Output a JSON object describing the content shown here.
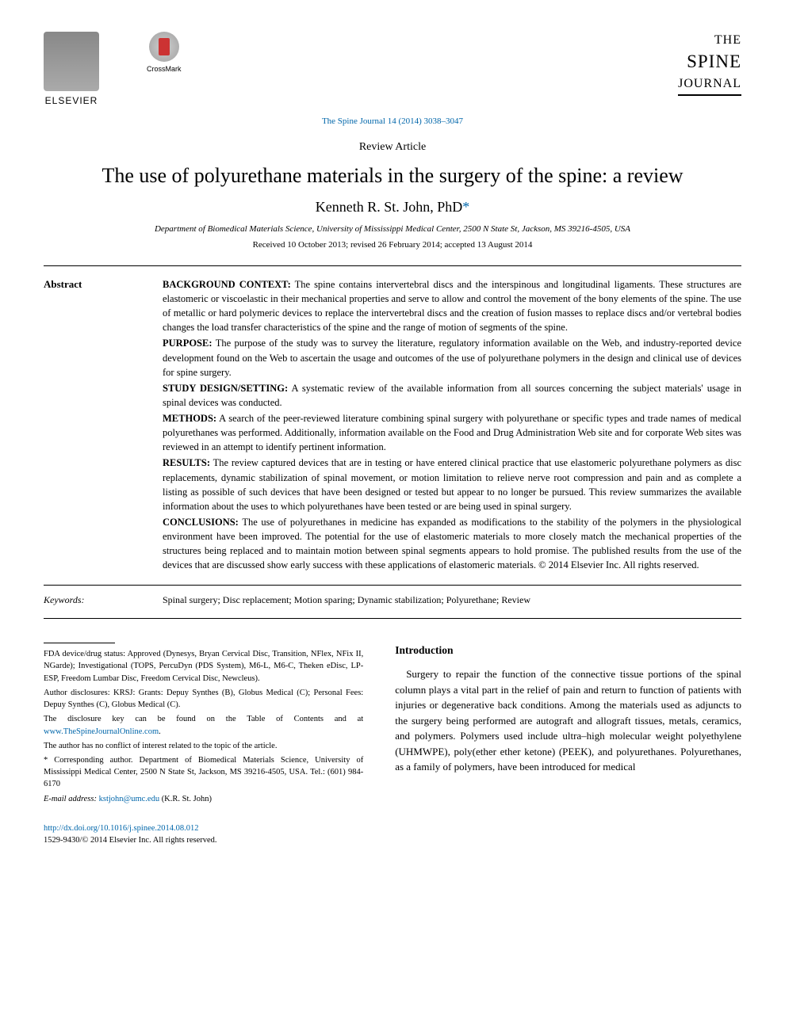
{
  "header": {
    "elsevier_label": "ELSEVIER",
    "crossmark_label": "CrossMark",
    "journal_the": "THE",
    "journal_spine": "SPINE",
    "journal_journal": "JOURNAL",
    "citation": "The Spine Journal 14 (2014) 3038–3047"
  },
  "article": {
    "type": "Review Article",
    "title": "The use of polyurethane materials in the surgery of the spine: a review",
    "author": "Kenneth R. St. John, PhD",
    "author_symbol": "*",
    "affiliation": "Department of Biomedical Materials Science, University of Mississippi Medical Center, 2500 N State St, Jackson, MS 39216-4505, USA",
    "dates": "Received 10 October 2013; revised 26 February 2014; accepted 13 August 2014"
  },
  "abstract": {
    "label": "Abstract",
    "background_head": "BACKGROUND CONTEXT:",
    "background": "The spine contains intervertebral discs and the interspinous and longitudinal ligaments. These structures are elastomeric or viscoelastic in their mechanical properties and serve to allow and control the movement of the bony elements of the spine. The use of metallic or hard polymeric devices to replace the intervertebral discs and the creation of fusion masses to replace discs and/or vertebral bodies changes the load transfer characteristics of the spine and the range of motion of segments of the spine.",
    "purpose_head": "PURPOSE:",
    "purpose": "The purpose of the study was to survey the literature, regulatory information available on the Web, and industry-reported device development found on the Web to ascertain the usage and outcomes of the use of polyurethane polymers in the design and clinical use of devices for spine surgery.",
    "design_head": "STUDY DESIGN/SETTING:",
    "design": "A systematic review of the available information from all sources concerning the subject materials' usage in spinal devices was conducted.",
    "methods_head": "METHODS:",
    "methods": "A search of the peer-reviewed literature combining spinal surgery with polyurethane or specific types and trade names of medical polyurethanes was performed. Additionally, information available on the Food and Drug Administration Web site and for corporate Web sites was reviewed in an attempt to identify pertinent information.",
    "results_head": "RESULTS:",
    "results": "The review captured devices that are in testing or have entered clinical practice that use elastomeric polyurethane polymers as disc replacements, dynamic stabilization of spinal movement, or motion limitation to relieve nerve root compression and pain and as complete a listing as possible of such devices that have been designed or tested but appear to no longer be pursued. This review summarizes the available information about the uses to which polyurethanes have been tested or are being used in spinal surgery.",
    "conclusions_head": "CONCLUSIONS:",
    "conclusions": "The use of polyurethanes in medicine has expanded as modifications to the stability of the polymers in the physiological environment have been improved. The potential for the use of elastomeric materials to more closely match the mechanical properties of the structures being replaced and to maintain motion between spinal segments appears to hold promise. The published results from the use of the devices that are discussed show early success with these applications of elastomeric materials.   © 2014 Elsevier Inc. All rights reserved."
  },
  "keywords": {
    "label": "Keywords:",
    "content": "Spinal surgery; Disc replacement; Motion sparing; Dynamic stabilization; Polyurethane; Review"
  },
  "footer": {
    "fda": "FDA device/drug status: Approved (Dynesys, Bryan Cervical Disc, Transition, NFlex, NFix II, NGarde); Investigational (TOPS, PercuDyn (PDS System), M6-L, M6-C, Theken eDisc, LP-ESP, Freedom Lumbar Disc, Freedom Cervical Disc, Newcleus).",
    "disclosures": "Author disclosures: KRSJ: Grants: Depuy Synthes (B), Globus Medical (C); Personal Fees: Depuy Synthes (C), Globus Medical (C).",
    "disclosure_key_pre": "The disclosure key can be found on the Table of Contents and at ",
    "disclosure_link": "www.TheSpineJournalOnline.com",
    "disclosure_key_post": ".",
    "conflict": "The author has no conflict of interest related to the topic of the article.",
    "corresponding": "* Corresponding author. Department of Biomedical Materials Science, University of Mississippi Medical Center, 2500 N State St, Jackson, MS 39216-4505, USA. Tel.: (601) 984-6170",
    "email_label": "E-mail address: ",
    "email": "kstjohn@umc.edu",
    "email_post": " (K.R. St. John)"
  },
  "intro": {
    "heading": "Introduction",
    "para": "Surgery to repair the function of the connective tissue portions of the spinal column plays a vital part in the relief of pain and return to function of patients with injuries or degenerative back conditions. Among the materials used as adjuncts to the surgery being performed are autograft and allograft tissues, metals, ceramics, and polymers. Polymers used include ultra–high molecular weight polyethylene (UHMWPE), poly(ether ether ketone) (PEEK), and polyurethanes. Polyurethanes, as a family of polymers, have been introduced for medical"
  },
  "bottom": {
    "doi": "http://dx.doi.org/10.1016/j.spinee.2014.08.012",
    "issn": "1529-9430/© 2014 Elsevier Inc. All rights reserved."
  },
  "colors": {
    "link": "#0066aa",
    "text": "#000000",
    "background": "#ffffff"
  },
  "typography": {
    "body_font": "Georgia, Times New Roman, serif",
    "title_size_pt": 20,
    "author_size_pt": 14,
    "abstract_size_pt": 9.5,
    "footer_size_pt": 8
  }
}
